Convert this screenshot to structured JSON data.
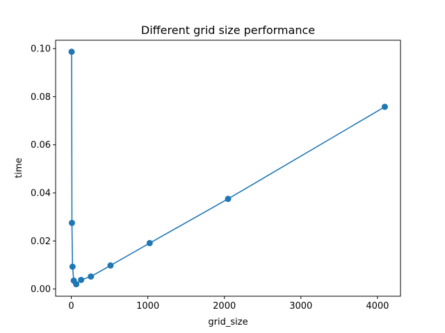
{
  "chart_data": {
    "type": "line",
    "title": "Different grid size performance",
    "xlabel": "grid_size",
    "ylabel": "time",
    "xlim": [
      -205,
      4301
    ],
    "ylim": [
      -0.003,
      0.1035
    ],
    "xticks": [
      0,
      1000,
      2000,
      3000,
      4000
    ],
    "xtick_labels": [
      "0",
      "1000",
      "2000",
      "3000",
      "4000"
    ],
    "yticks": [
      0.0,
      0.02,
      0.04,
      0.06,
      0.08,
      0.1
    ],
    "ytick_labels": [
      "0.00",
      "0.02",
      "0.04",
      "0.06",
      "0.08",
      "0.10"
    ],
    "grid": false,
    "markers": true,
    "color": "#1f77b4",
    "series": [
      {
        "x": [
          4,
          8,
          16,
          32,
          64,
          128,
          256,
          512,
          1024,
          2048,
          4096
        ],
        "y": [
          0.0987,
          0.0275,
          0.0093,
          0.0035,
          0.002,
          0.0038,
          0.0052,
          0.0098,
          0.0191,
          0.0375,
          0.0758
        ]
      }
    ]
  }
}
